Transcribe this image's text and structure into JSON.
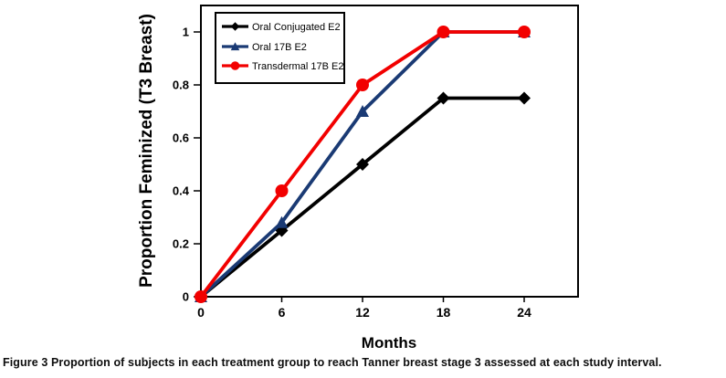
{
  "figure": {
    "caption": {
      "label": "Figure 3",
      "text": " Proportion of subjects in each treatment group to reach Tanner breast stage 3 assessed at each study interval."
    }
  },
  "chart_data": {
    "type": "line",
    "title": "",
    "xlabel": "Months",
    "ylabel": "Proportion Feminized (T3 Breast)",
    "x": [
      0,
      6,
      12,
      18,
      24
    ],
    "series": [
      {
        "name": "Oral Conjugated E2",
        "color": "#000000",
        "marker": "diamond",
        "values": [
          0,
          0.25,
          0.5,
          0.75,
          0.75
        ]
      },
      {
        "name": "Oral 17B E2",
        "color": "#1a3a74",
        "marker": "triangle",
        "values": [
          0,
          0.28,
          0.7,
          1.0,
          1.0
        ]
      },
      {
        "name": "Transdermal 17B E2",
        "color": "#f20000",
        "marker": "circle",
        "values": [
          0,
          0.4,
          0.8,
          1.0,
          1.0
        ]
      }
    ],
    "xticks": [
      "0",
      "6",
      "12",
      "18",
      "24"
    ],
    "yticks": [
      "0",
      "0.2",
      "0.4",
      "0.6",
      "0.8",
      "1"
    ],
    "xlim": [
      0,
      28
    ],
    "ylim": [
      0,
      1.1
    ],
    "grid": false,
    "legend_position": "top-left-inside",
    "frame_color": "#000000",
    "background_color": "#ffffff"
  }
}
